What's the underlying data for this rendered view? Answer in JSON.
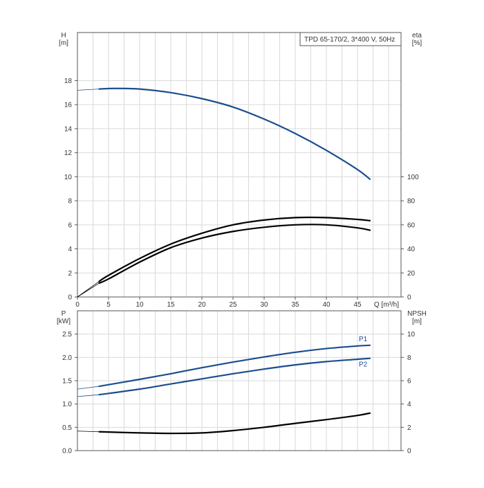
{
  "chart_data": [
    {
      "type": "line",
      "title": "TPD 65-170/2, 3*400 V, 50Hz",
      "x_axis": {
        "label": "Q [m³/h]",
        "range": [
          0,
          52
        ],
        "ticks": [
          0,
          5,
          10,
          15,
          20,
          25,
          30,
          35,
          40,
          45
        ]
      },
      "y_left": {
        "label_line1": "H",
        "label_line2": "[m]",
        "range": [
          0,
          22
        ],
        "ticks": [
          0,
          2,
          4,
          6,
          8,
          10,
          12,
          14,
          16,
          18
        ]
      },
      "y_right": {
        "label_line1": "eta",
        "label_line2": "[%]",
        "range": [
          0,
          220
        ],
        "ticks": [
          0,
          20,
          40,
          60,
          80,
          100
        ]
      },
      "series": [
        {
          "axis": "left",
          "color": "#1a4d8f",
          "x": [
            0,
            3.5,
            6,
            10,
            15,
            20,
            25,
            30,
            35,
            40,
            45,
            47
          ],
          "y": [
            17.2,
            17.3,
            17.35,
            17.3,
            17.0,
            16.5,
            15.8,
            14.8,
            13.6,
            12.2,
            10.6,
            9.8
          ]
        },
        {
          "axis": "right",
          "color": "#000000",
          "x": [
            0,
            3.5,
            5,
            10,
            15,
            20,
            25,
            30,
            35,
            40,
            45,
            47
          ],
          "y": [
            0,
            13,
            18,
            32,
            44,
            53,
            60,
            64,
            66,
            66,
            64.5,
            63.5
          ]
        },
        {
          "axis": "right",
          "color": "#000000",
          "x": [
            0,
            3.5,
            5,
            10,
            15,
            20,
            25,
            30,
            35,
            40,
            45,
            47
          ],
          "y": [
            0,
            11.5,
            15,
            29,
            41,
            49,
            54.5,
            58,
            60,
            60,
            57.5,
            55.5
          ]
        }
      ],
      "grid": true
    },
    {
      "type": "line",
      "x_axis": {
        "range": [
          0,
          52
        ]
      },
      "y_left": {
        "label_line1": "P",
        "label_line2": "[kW]",
        "range": [
          0,
          3.0
        ],
        "ticks": [
          0.0,
          0.5,
          1.0,
          1.5,
          2.0,
          2.5
        ],
        "tick_labels": [
          "0.0",
          "0.5",
          "1.0",
          "1.5",
          "2.0",
          "2.5"
        ]
      },
      "y_right": {
        "label_line1": "NPSH",
        "label_line2": "[m]",
        "range": [
          0,
          12
        ],
        "ticks": [
          0,
          2,
          4,
          6,
          8,
          10
        ]
      },
      "series": [
        {
          "name": "P1",
          "axis": "left",
          "color": "#1a4d8f",
          "x": [
            0,
            3.5,
            10,
            15,
            20,
            25,
            30,
            35,
            40,
            45,
            47
          ],
          "y": [
            1.32,
            1.38,
            1.53,
            1.65,
            1.78,
            1.9,
            2.01,
            2.11,
            2.19,
            2.245,
            2.26
          ]
        },
        {
          "name": "P2",
          "axis": "left",
          "color": "#1a4d8f",
          "x": [
            0,
            3.5,
            10,
            15,
            20,
            25,
            30,
            35,
            40,
            45,
            47
          ],
          "y": [
            1.16,
            1.2,
            1.32,
            1.43,
            1.54,
            1.65,
            1.75,
            1.84,
            1.91,
            1.96,
            1.98
          ]
        },
        {
          "axis": "right",
          "color": "#000000",
          "x": [
            0,
            3.5,
            10,
            15,
            20,
            25,
            30,
            35,
            40,
            45,
            47
          ],
          "y": [
            1.68,
            1.62,
            1.52,
            1.48,
            1.52,
            1.72,
            2.0,
            2.34,
            2.66,
            3.02,
            3.22
          ]
        }
      ],
      "grid": true
    }
  ]
}
